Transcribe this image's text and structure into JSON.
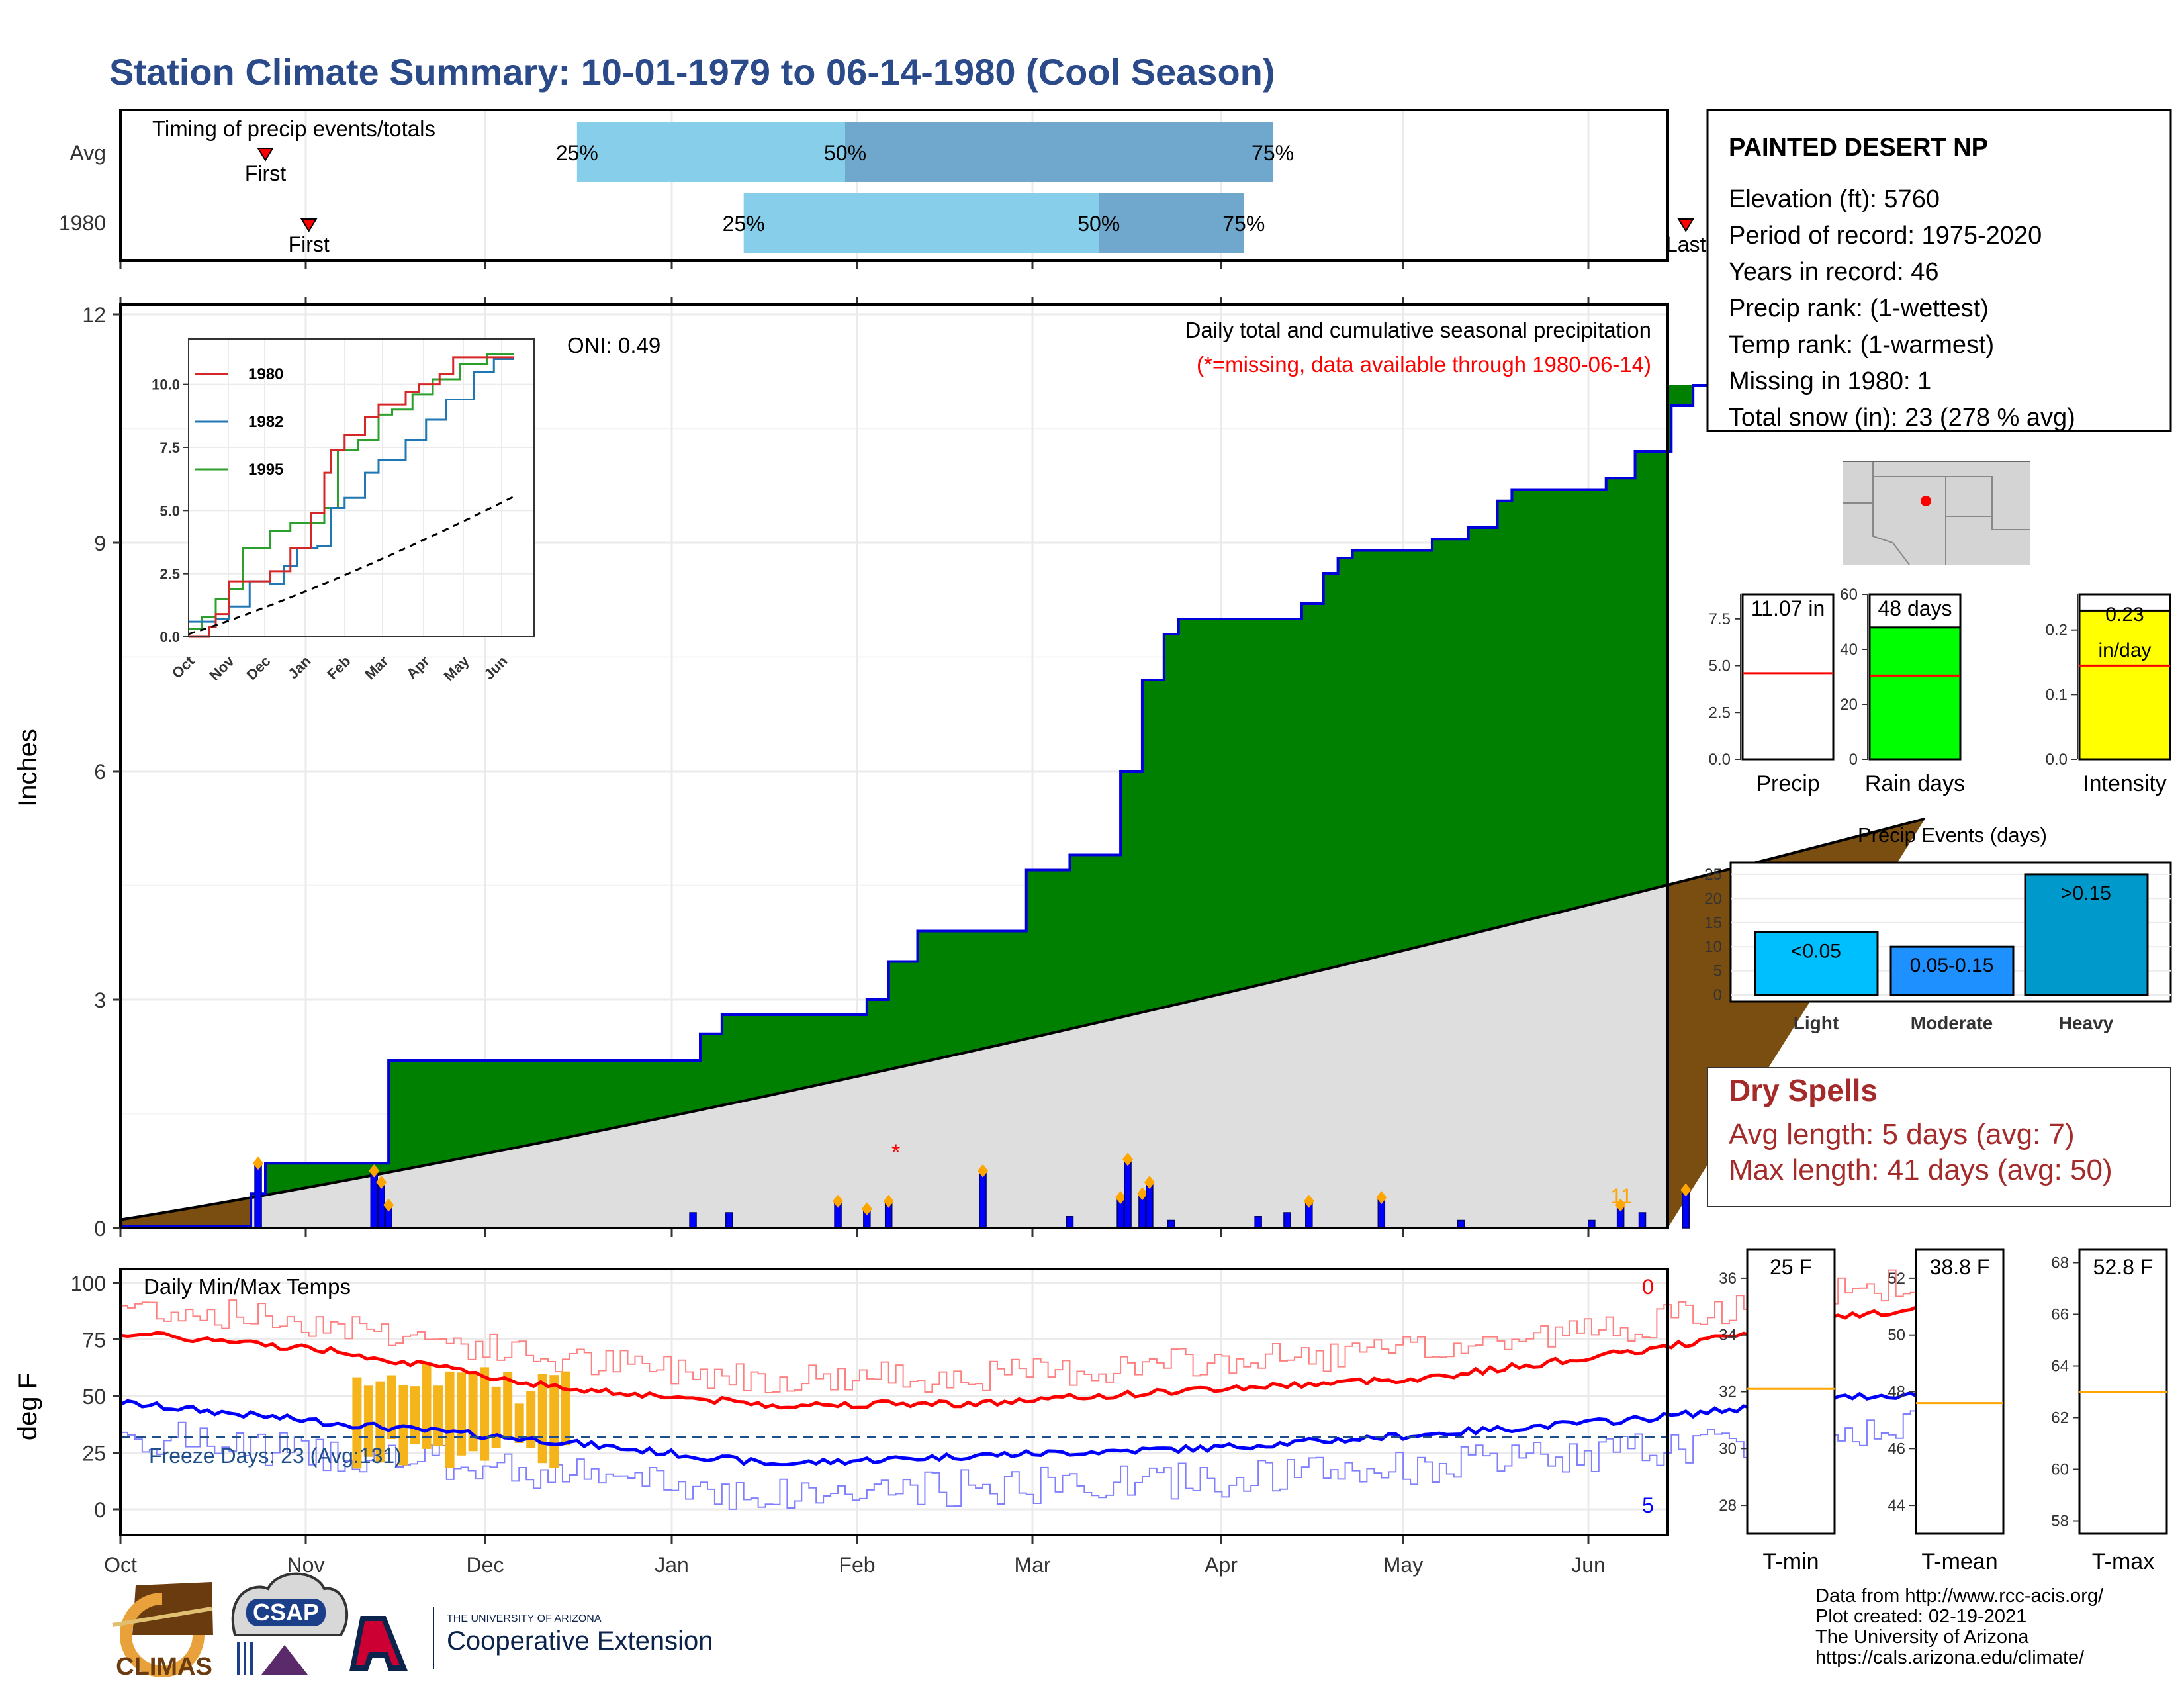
{
  "title": "Station Climate Summary: 10-01-1979 to 06-14-1980 (Cool Season)",
  "colors": {
    "title": "#2b4a8a",
    "cumulative_fill": "#008000",
    "cumulative_line": "#0000dd",
    "avg_fill": "#dedede",
    "deficit_fill": "#7a4d10",
    "tmax": "#ff0000",
    "tmin": "#0000ff",
    "freeze_bars": "#f4b41a",
    "dry_spells": "#a52a2a",
    "rain_days_fill": "#00ff00",
    "intensity_fill": "#ffff00",
    "events_light": "#00bfff",
    "events_moderate": "#1e90ff",
    "events_heavy": "#0099cc",
    "median_marker": "#ffa500"
  },
  "month_axis": [
    "Oct",
    "Nov",
    "Dec",
    "Jan",
    "Feb",
    "Mar",
    "Apr",
    "May",
    "Jun"
  ],
  "timing": {
    "label": "Timing of precip events/totals",
    "rows": [
      {
        "name": "Avg",
        "first_label": "First",
        "last_label": "Last",
        "first_day": 20,
        "last_day": 231,
        "p25": 63,
        "p50": 100,
        "p75": 159,
        "p25_label": "25%",
        "p50_label": "50%",
        "p75_label": "75%"
      },
      {
        "name": "1980",
        "first_label": "First",
        "last_label": "Last",
        "first_day": 26,
        "last_day": 216,
        "p25": 86,
        "p50": 135,
        "p75": 155,
        "p25_label": "25%",
        "p50_label": "50%",
        "p75_label": "75%"
      }
    ]
  },
  "main": {
    "ylabel": "Inches",
    "annotation_title": "Daily total and cumulative seasonal precipitation",
    "annotation_missing": "(*=missing, data available through 1980-06-14)",
    "oni": "ONI: 0.49",
    "count_label": "11"
  },
  "inset": {
    "legend": [
      "1980",
      "1982",
      "1995"
    ]
  },
  "temps": {
    "title": "Daily Min/Max Temps",
    "ylabel": "deg F",
    "freeze_text": "Freeze Days: 23 (Avg:131)",
    "max_count": "0",
    "min_count": "5"
  },
  "station": {
    "name": "PAINTED DESERT NP",
    "lines": [
      "Elevation (ft): 5760",
      "Period of record: 1975-2020",
      "Years in record: 46",
      "Precip rank:  (1-wettest)",
      "Temp rank:  (1-warmest)",
      "Missing in 1980: 1",
      "Total snow (in): 23 (278 % avg)"
    ]
  },
  "mini_bars": [
    {
      "label": "Precip",
      "value_text": "11.07 in",
      "avg": 4.6,
      "ticks": [
        "0.0",
        "2.5",
        "5.0",
        "7.5"
      ]
    },
    {
      "label": "Rain days",
      "value_text": "48 days",
      "value": 48,
      "avg": 30.5,
      "ticks": [
        "0",
        "20",
        "40",
        "60"
      ]
    },
    {
      "label": "Intensity",
      "value_text_1": "0.23",
      "value_text_2": "in/day",
      "value": 0.23,
      "avg": 0.145,
      "ticks": [
        "0.0",
        "0.1",
        "0.2"
      ]
    }
  ],
  "precip_events": {
    "title": "Precip Events (days)",
    "ticks": [
      "0",
      "5",
      "10",
      "15",
      "20",
      "25"
    ],
    "bars": [
      {
        "category": "Light",
        "label": "<0.05",
        "value": 13
      },
      {
        "category": "Moderate",
        "label": "0.05-0.15",
        "value": 10
      },
      {
        "category": "Heavy",
        "label": ">0.15",
        "value": 25
      }
    ]
  },
  "dry_spells": {
    "title": "Dry Spells",
    "avg_line": "Avg length: 5 days (avg: 7)",
    "max_line": "Max length: 41 days (avg: 50)"
  },
  "temp_panels": [
    {
      "label": "T-min",
      "value_text": "25 F",
      "ticks": [
        "28",
        "30",
        "32",
        "34",
        "36"
      ]
    },
    {
      "label": "T-mean",
      "value_text": "38.8 F",
      "ticks": [
        "44",
        "46",
        "48",
        "50",
        "52"
      ]
    },
    {
      "label": "T-max",
      "value_text": "52.8 F",
      "ticks": [
        "58",
        "60",
        "62",
        "63",
        "64",
        "66",
        "68"
      ]
    }
  ],
  "credits": [
    "Data from http://www.rcc-acis.org/",
    "Plot created: 02-19-2021",
    "The University of Arizona",
    "https://cals.arizona.edu/climate/"
  ],
  "logos": {
    "climas": "CLIMAS",
    "csap": "CSAP",
    "ua_small": "THE UNIVERSITY OF ARIZONA",
    "ua_big": "Cooperative Extension"
  },
  "chart_data": [
    {
      "type": "area",
      "title": "Daily total and cumulative seasonal precipitation",
      "ylabel": "Inches",
      "ylim": [
        0,
        12
      ],
      "yticks": [
        0,
        3,
        6,
        9,
        12
      ],
      "x_unit": "day of season from 1979-10-01",
      "cumulative_1980_steps": [
        [
          0,
          0.02
        ],
        [
          18,
          0.45
        ],
        [
          20,
          0.85
        ],
        [
          32,
          0.85
        ],
        [
          37,
          2.2
        ],
        [
          79,
          2.2
        ],
        [
          80,
          2.55
        ],
        [
          83,
          2.8
        ],
        [
          100,
          2.8
        ],
        [
          103,
          3.0
        ],
        [
          106,
          3.5
        ],
        [
          110,
          3.9
        ],
        [
          125,
          4.7
        ],
        [
          131,
          4.9
        ],
        [
          138,
          6.0
        ],
        [
          141,
          7.2
        ],
        [
          144,
          7.8
        ],
        [
          146,
          8.0
        ],
        [
          160,
          8.0
        ],
        [
          163,
          8.2
        ],
        [
          166,
          8.6
        ],
        [
          168,
          8.8
        ],
        [
          170,
          8.9
        ],
        [
          176,
          8.9
        ],
        [
          181,
          9.05
        ],
        [
          186,
          9.2
        ],
        [
          190,
          9.55
        ],
        [
          192,
          9.7
        ],
        [
          205,
          9.85
        ],
        [
          209,
          10.2
        ],
        [
          214,
          10.8
        ],
        [
          217,
          11.07
        ],
        [
          250,
          11.07
        ]
      ],
      "average_cumulative_end": 5.4,
      "daily_precip": [
        [
          19,
          0.85
        ],
        [
          35,
          0.75
        ],
        [
          36,
          0.6
        ],
        [
          37,
          0.3
        ],
        [
          79,
          0.2
        ],
        [
          84,
          0.2
        ],
        [
          99,
          0.35
        ],
        [
          103,
          0.25
        ],
        [
          106,
          0.35
        ],
        [
          119,
          0.75
        ],
        [
          131,
          0.15
        ],
        [
          138,
          0.4
        ],
        [
          139,
          0.9
        ],
        [
          141,
          0.45
        ],
        [
          142,
          0.6
        ],
        [
          145,
          0.1
        ],
        [
          157,
          0.15
        ],
        [
          161,
          0.2
        ],
        [
          164,
          0.35
        ],
        [
          174,
          0.4
        ],
        [
          185,
          0.1
        ],
        [
          203,
          0.1
        ],
        [
          207,
          0.3
        ],
        [
          210,
          0.2
        ],
        [
          216,
          0.5
        ]
      ],
      "missing_day": 107
    },
    {
      "type": "line",
      "title": "",
      "series": [
        {
          "name": "1980",
          "end_value": 11.07
        },
        {
          "name": "1982",
          "end_value": 11.0
        },
        {
          "name": "1995",
          "end_value": 11.2
        }
      ],
      "xticks": [
        "Oct",
        "Nov",
        "Dec",
        "Jan",
        "Feb",
        "Mar",
        "Apr",
        "May",
        "Jun"
      ],
      "yticks": [
        0.0,
        2.5,
        5.0,
        7.5,
        10.0
      ]
    },
    {
      "type": "line",
      "title": "Daily Min/Max Temps",
      "ylabel": "deg F",
      "ylim": [
        -10,
        105
      ],
      "yticks": [
        0,
        25,
        50,
        75,
        100
      ],
      "freeze_line": 32,
      "avg_tmax_points": [
        [
          0,
          78
        ],
        [
          30,
          70
        ],
        [
          60,
          54
        ],
        [
          90,
          46
        ],
        [
          120,
          47
        ],
        [
          150,
          53
        ],
        [
          180,
          58
        ],
        [
          210,
          70
        ],
        [
          240,
          86
        ],
        [
          255,
          90
        ]
      ],
      "avg_tmin_points": [
        [
          0,
          47
        ],
        [
          30,
          38
        ],
        [
          60,
          30
        ],
        [
          90,
          20
        ],
        [
          120,
          24
        ],
        [
          150,
          27
        ],
        [
          180,
          33
        ],
        [
          210,
          40
        ],
        [
          240,
          50
        ],
        [
          255,
          51
        ]
      ]
    },
    {
      "type": "bar",
      "title": "Precip Events (days)",
      "categories": [
        "Light",
        "Moderate",
        "Heavy"
      ],
      "values": [
        13,
        10,
        25
      ]
    }
  ]
}
